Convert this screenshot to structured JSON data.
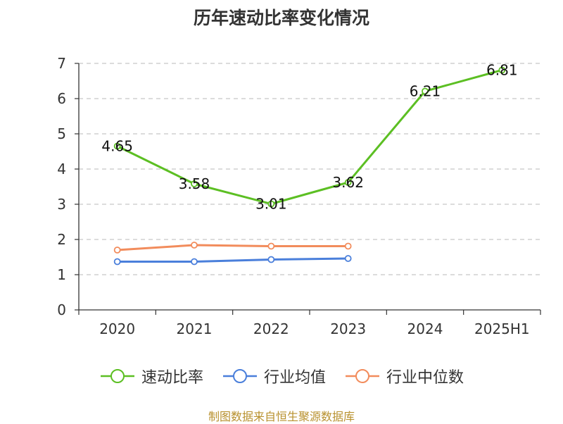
{
  "title": "历年速动比率变化情况",
  "source": "制图数据来自恒生聚源数据库",
  "chart_data": {
    "type": "line",
    "title": "历年速动比率变化情况",
    "categories": [
      "2020",
      "2021",
      "2022",
      "2023",
      "2024",
      "2025H1"
    ],
    "ylim": [
      0,
      7
    ],
    "yticks": [
      "0",
      "1",
      "2",
      "3",
      "4",
      "5",
      "6",
      "7"
    ],
    "grid": true,
    "legend_position": "bottom",
    "series": [
      {
        "name": "速动比率",
        "color": "#5cbf23",
        "values": [
          4.65,
          3.58,
          3.01,
          3.62,
          6.21,
          6.81
        ],
        "labels": [
          "4.65",
          "3.58",
          "3.01",
          "3.62",
          "6.21",
          "6.81"
        ]
      },
      {
        "name": "行业均值",
        "color": "#4a7fdb",
        "values": [
          1.37,
          1.37,
          1.43,
          1.46,
          null,
          null
        ]
      },
      {
        "name": "行业中位数",
        "color": "#f28c5c",
        "values": [
          1.7,
          1.84,
          1.81,
          1.81,
          null,
          null
        ]
      }
    ]
  }
}
